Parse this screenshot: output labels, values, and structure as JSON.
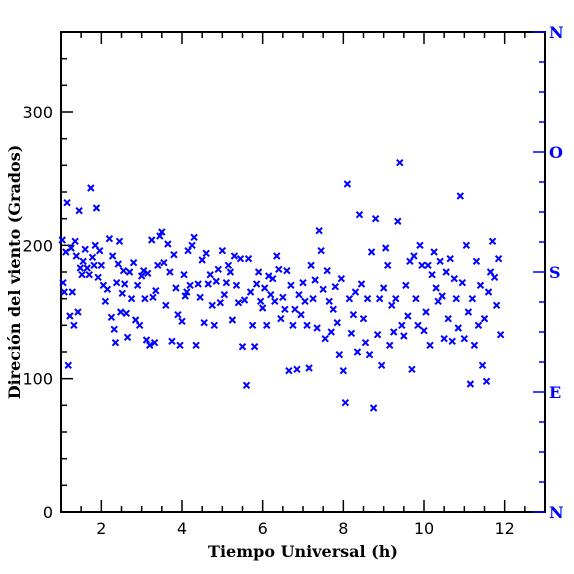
{
  "chart_data": {
    "type": "scatter",
    "xlabel": "Tiempo Universal (h)",
    "ylabel": "Direción del viento (Grados)",
    "xlim": [
      1,
      13
    ],
    "ylim": [
      0,
      360
    ],
    "x_ticks": [
      2,
      4,
      6,
      8,
      10,
      12
    ],
    "y_ticks": [
      0,
      100,
      200,
      300
    ],
    "right_axis_labels": [
      {
        "value": 0,
        "label": "N"
      },
      {
        "value": 90,
        "label": "E"
      },
      {
        "value": 180,
        "label": "S"
      },
      {
        "value": 270,
        "label": "O"
      },
      {
        "value": 360,
        "label": "N"
      }
    ],
    "marker": "x",
    "color": "#0000ff",
    "grid": false,
    "points": [
      [
        1.03,
        204
      ],
      [
        1.05,
        172
      ],
      [
        1.08,
        165
      ],
      [
        1.12,
        195
      ],
      [
        1.15,
        232
      ],
      [
        1.18,
        110
      ],
      [
        1.22,
        147
      ],
      [
        1.25,
        198
      ],
      [
        1.28,
        165
      ],
      [
        1.32,
        140
      ],
      [
        1.35,
        203
      ],
      [
        1.38,
        192
      ],
      [
        1.42,
        150
      ],
      [
        1.45,
        226
      ],
      [
        1.48,
        183
      ],
      [
        1.52,
        178
      ],
      [
        1.55,
        188
      ],
      [
        1.6,
        197
      ],
      [
        1.65,
        183
      ],
      [
        1.7,
        178
      ],
      [
        1.74,
        243
      ],
      [
        1.78,
        191
      ],
      [
        1.82,
        185
      ],
      [
        1.85,
        200
      ],
      [
        1.88,
        228
      ],
      [
        1.92,
        176
      ],
      [
        1.96,
        196
      ],
      [
        2.0,
        185
      ],
      [
        2.05,
        170
      ],
      [
        2.1,
        158
      ],
      [
        2.15,
        167
      ],
      [
        2.2,
        205
      ],
      [
        2.25,
        146
      ],
      [
        2.28,
        192
      ],
      [
        2.32,
        137
      ],
      [
        2.35,
        127
      ],
      [
        2.38,
        172
      ],
      [
        2.42,
        186
      ],
      [
        2.45,
        203
      ],
      [
        2.48,
        150
      ],
      [
        2.52,
        164
      ],
      [
        2.55,
        181
      ],
      [
        2.58,
        171
      ],
      [
        2.62,
        149
      ],
      [
        2.65,
        131
      ],
      [
        2.7,
        180
      ],
      [
        2.75,
        160
      ],
      [
        2.8,
        187
      ],
      [
        2.85,
        144
      ],
      [
        2.9,
        170
      ],
      [
        2.95,
        140
      ],
      [
        3.0,
        177
      ],
      [
        3.05,
        181
      ],
      [
        3.08,
        160
      ],
      [
        3.12,
        129
      ],
      [
        3.15,
        179
      ],
      [
        3.2,
        125
      ],
      [
        3.25,
        204
      ],
      [
        3.28,
        161
      ],
      [
        3.32,
        127
      ],
      [
        3.35,
        166
      ],
      [
        3.4,
        185
      ],
      [
        3.45,
        207
      ],
      [
        3.5,
        210
      ],
      [
        3.55,
        187
      ],
      [
        3.6,
        155
      ],
      [
        3.65,
        201
      ],
      [
        3.7,
        180
      ],
      [
        3.75,
        128
      ],
      [
        3.8,
        193
      ],
      [
        3.85,
        168
      ],
      [
        3.9,
        148
      ],
      [
        3.95,
        125
      ],
      [
        4.0,
        143
      ],
      [
        4.05,
        178
      ],
      [
        4.08,
        162
      ],
      [
        4.12,
        165
      ],
      [
        4.15,
        196
      ],
      [
        4.2,
        170
      ],
      [
        4.25,
        200
      ],
      [
        4.3,
        206
      ],
      [
        4.35,
        125
      ],
      [
        4.4,
        171
      ],
      [
        4.45,
        161
      ],
      [
        4.5,
        189
      ],
      [
        4.55,
        142
      ],
      [
        4.6,
        194
      ],
      [
        4.65,
        171
      ],
      [
        4.7,
        178
      ],
      [
        4.75,
        155
      ],
      [
        4.8,
        140
      ],
      [
        4.85,
        173
      ],
      [
        4.9,
        182
      ],
      [
        4.95,
        157
      ],
      [
        5.0,
        196
      ],
      [
        5.05,
        163
      ],
      [
        5.1,
        172
      ],
      [
        5.15,
        185
      ],
      [
        5.2,
        180
      ],
      [
        5.25,
        144
      ],
      [
        5.3,
        192
      ],
      [
        5.35,
        170
      ],
      [
        5.4,
        157
      ],
      [
        5.45,
        190
      ],
      [
        5.5,
        124
      ],
      [
        5.55,
        159
      ],
      [
        5.6,
        95
      ],
      [
        5.65,
        190
      ],
      [
        5.7,
        165
      ],
      [
        5.75,
        140
      ],
      [
        5.8,
        124
      ],
      [
        5.85,
        171
      ],
      [
        5.9,
        180
      ],
      [
        5.95,
        158
      ],
      [
        6.0,
        153
      ],
      [
        6.05,
        168
      ],
      [
        6.1,
        140
      ],
      [
        6.15,
        177
      ],
      [
        6.2,
        163
      ],
      [
        6.25,
        175
      ],
      [
        6.3,
        158
      ],
      [
        6.35,
        192
      ],
      [
        6.4,
        182
      ],
      [
        6.45,
        145
      ],
      [
        6.5,
        161
      ],
      [
        6.55,
        152
      ],
      [
        6.6,
        181
      ],
      [
        6.65,
        106
      ],
      [
        6.7,
        170
      ],
      [
        6.75,
        140
      ],
      [
        6.8,
        152
      ],
      [
        6.85,
        107
      ],
      [
        6.9,
        163
      ],
      [
        6.95,
        148
      ],
      [
        7.0,
        172
      ],
      [
        7.05,
        158
      ],
      [
        7.1,
        140
      ],
      [
        7.15,
        108
      ],
      [
        7.2,
        185
      ],
      [
        7.25,
        160
      ],
      [
        7.3,
        174
      ],
      [
        7.35,
        138
      ],
      [
        7.4,
        211
      ],
      [
        7.45,
        196
      ],
      [
        7.5,
        167
      ],
      [
        7.55,
        130
      ],
      [
        7.6,
        181
      ],
      [
        7.65,
        158
      ],
      [
        7.7,
        135
      ],
      [
        7.75,
        152
      ],
      [
        7.8,
        169
      ],
      [
        7.85,
        142
      ],
      [
        7.9,
        118
      ],
      [
        7.95,
        175
      ],
      [
        8.0,
        106
      ],
      [
        8.05,
        82
      ],
      [
        8.1,
        246
      ],
      [
        8.15,
        160
      ],
      [
        8.2,
        134
      ],
      [
        8.25,
        148
      ],
      [
        8.3,
        165
      ],
      [
        8.35,
        120
      ],
      [
        8.4,
        223
      ],
      [
        8.45,
        171
      ],
      [
        8.5,
        145
      ],
      [
        8.55,
        127
      ],
      [
        8.6,
        160
      ],
      [
        8.65,
        118
      ],
      [
        8.7,
        195
      ],
      [
        8.75,
        78
      ],
      [
        8.8,
        220
      ],
      [
        8.85,
        133
      ],
      [
        8.9,
        160
      ],
      [
        8.95,
        110
      ],
      [
        9.0,
        168
      ],
      [
        9.05,
        198
      ],
      [
        9.1,
        185
      ],
      [
        9.15,
        125
      ],
      [
        9.2,
        155
      ],
      [
        9.25,
        135
      ],
      [
        9.3,
        160
      ],
      [
        9.35,
        218
      ],
      [
        9.4,
        262
      ],
      [
        9.45,
        140
      ],
      [
        9.5,
        132
      ],
      [
        9.55,
        170
      ],
      [
        9.6,
        147
      ],
      [
        9.65,
        188
      ],
      [
        9.7,
        107
      ],
      [
        9.75,
        192
      ],
      [
        9.8,
        160
      ],
      [
        9.85,
        140
      ],
      [
        9.9,
        200
      ],
      [
        9.95,
        185
      ],
      [
        10.0,
        136
      ],
      [
        10.05,
        150
      ],
      [
        10.1,
        185
      ],
      [
        10.15,
        125
      ],
      [
        10.2,
        178
      ],
      [
        10.25,
        195
      ],
      [
        10.3,
        168
      ],
      [
        10.35,
        158
      ],
      [
        10.4,
        188
      ],
      [
        10.45,
        162
      ],
      [
        10.5,
        130
      ],
      [
        10.55,
        180
      ],
      [
        10.6,
        145
      ],
      [
        10.65,
        190
      ],
      [
        10.7,
        128
      ],
      [
        10.75,
        175
      ],
      [
        10.8,
        160
      ],
      [
        10.85,
        138
      ],
      [
        10.9,
        237
      ],
      [
        10.95,
        172
      ],
      [
        11.0,
        130
      ],
      [
        11.05,
        200
      ],
      [
        11.1,
        150
      ],
      [
        11.15,
        96
      ],
      [
        11.2,
        160
      ],
      [
        11.25,
        125
      ],
      [
        11.3,
        188
      ],
      [
        11.35,
        140
      ],
      [
        11.4,
        170
      ],
      [
        11.45,
        110
      ],
      [
        11.5,
        145
      ],
      [
        11.55,
        98
      ],
      [
        11.6,
        165
      ],
      [
        11.65,
        180
      ],
      [
        11.7,
        203
      ],
      [
        11.75,
        176
      ],
      [
        11.8,
        155
      ],
      [
        11.85,
        190
      ],
      [
        11.9,
        133
      ]
    ]
  }
}
